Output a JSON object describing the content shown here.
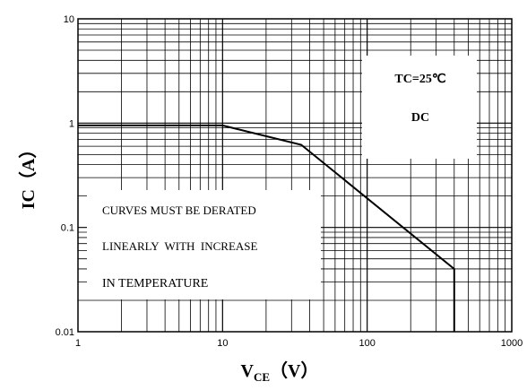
{
  "chart_data": {
    "type": "line",
    "x_scale": "log",
    "y_scale": "log",
    "xlim": [
      1,
      1000
    ],
    "ylim": [
      0.01,
      10
    ],
    "grid": true,
    "x_ticks": [
      "1",
      "10",
      "100",
      "1000"
    ],
    "y_ticks": [
      "10",
      "1",
      "0.1",
      "0.01"
    ],
    "ylabel": "IC（A）",
    "xlabel": {
      "main": "V",
      "sub": "CE",
      "unit": "（V）"
    },
    "series": [
      {
        "x": [
          1,
          10,
          35,
          400,
          400
        ],
        "y": [
          0.95,
          0.95,
          0.62,
          0.04,
          0.01
        ]
      }
    ],
    "annotations": {
      "condition": [
        "TC=25℃",
        "DC"
      ],
      "note": [
        "CURVES MUST BE DERATED",
        "LINEARLY  WITH  INCREASE",
        "IN TEMPERATURE"
      ]
    },
    "colors": {
      "line": "#000000",
      "grid": "#000000",
      "background": "#ffffff"
    }
  }
}
